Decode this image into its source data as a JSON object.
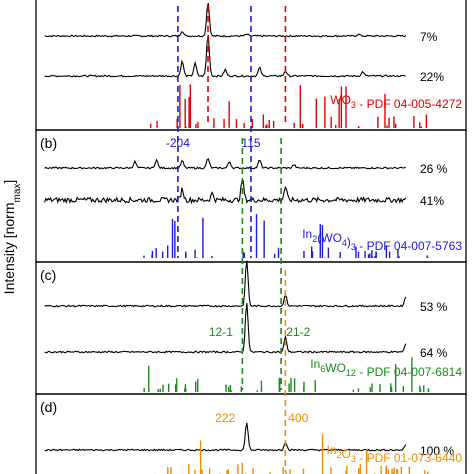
{
  "chart_data": {
    "type": "line",
    "ylabel": "Intensity [norm",
    "ylabel_sub": "max",
    "ylabel_close": "]",
    "colors": {
      "pattern": "#000000",
      "WO3": "#e00000",
      "In2(WO4)3": "#1a1adb",
      "In6WO12": "#1a8a1a",
      "In2O3": "#f08c00"
    },
    "panels": [
      {
        "letter": "",
        "traces": [
          {
            "label": "7%",
            "peaks": [
              {
                "x": 0.4,
                "h": 1.0
              },
              {
                "x": 0.34,
                "h": 0.15
              },
              {
                "x": 0.49,
                "h": 0.05
              },
              {
                "x": 0.75,
                "h": 0.05
              }
            ]
          },
          {
            "label": "22%",
            "peaks": [
              {
                "x": 0.4,
                "h": 1.0
              },
              {
                "x": 0.34,
                "h": 0.35
              },
              {
                "x": 0.37,
                "h": 0.3
              },
              {
                "x": 0.52,
                "h": 0.2
              },
              {
                "x": 0.44,
                "h": 0.15
              },
              {
                "x": 0.58,
                "h": 0.12
              },
              {
                "x": 0.76,
                "h": 0.1
              }
            ]
          }
        ],
        "reference": {
          "name": "WO",
          "sub": "3",
          "rest": " - PDF 04-005-4272",
          "color_key": "WO3"
        },
        "marker_labels": []
      },
      {
        "letter": "(b)",
        "traces": [
          {
            "label": "26 %",
            "peaks": [
              {
                "x": 0.23,
                "h": 0.4
              },
              {
                "x": 0.28,
                "h": 0.5
              },
              {
                "x": 0.34,
                "h": 0.45
              },
              {
                "x": 0.4,
                "h": 0.6
              },
              {
                "x": 0.45,
                "h": 0.4
              },
              {
                "x": 0.52,
                "h": 0.5
              },
              {
                "x": 0.6,
                "h": 0.2
              }
            ]
          },
          {
            "label": "41%",
            "peaks": [
              {
                "x": 0.34,
                "h": 0.5
              },
              {
                "x": 0.48,
                "h": 0.95
              },
              {
                "x": 0.58,
                "h": 0.6
              },
              {
                "x": 0.41,
                "h": 0.3
              }
            ]
          }
        ],
        "reference": {
          "name": "In",
          "sub": "2",
          "mid": "(WO",
          "sub2": "4",
          "mid2": ")",
          "sub3": "3",
          "rest": " - PDF 04-007-5763",
          "color_key": "In2(WO4)3"
        },
        "marker_labels": [
          {
            "text": "-204",
            "x": 0.33,
            "color_key": "In2(WO4)3"
          },
          {
            "text": "115",
            "x": 0.5,
            "color_key": "In2(WO4)3"
          }
        ]
      },
      {
        "letter": "(c)",
        "traces": [
          {
            "label": "53 %",
            "peaks": [
              {
                "x": 0.49,
                "h": 1.0
              },
              {
                "x": 0.58,
                "h": 0.25
              },
              {
                "x": 0.86,
                "h": 0.2
              }
            ]
          },
          {
            "label": "64 %",
            "peaks": [
              {
                "x": 0.49,
                "h": 1.0
              },
              {
                "x": 0.58,
                "h": 0.3
              },
              {
                "x": 0.86,
                "h": 0.15
              }
            ]
          }
        ],
        "reference": {
          "name": "In",
          "sub": "6",
          "mid": "WO",
          "sub2": "12",
          "rest": " - PDF 04-007-6814",
          "color_key": "In6WO12"
        },
        "marker_labels": [
          {
            "text": "12-1",
            "x": 0.43,
            "color_key": "In6WO12"
          },
          {
            "text": "21-2",
            "x": 0.61,
            "color_key": "In6WO12"
          }
        ]
      },
      {
        "letter": "(d)",
        "traces": [
          {
            "label": "100 %",
            "peaks": [
              {
                "x": 0.49,
                "h": 1.0
              },
              {
                "x": 0.58,
                "h": 0.3
              },
              {
                "x": 0.86,
                "h": 0.2
              }
            ]
          }
        ],
        "reference": {
          "name": "In",
          "sub": "2",
          "mid": "O",
          "sub2": "3",
          "rest": " - PDF 01-073-6440",
          "color_key": "In2O3"
        },
        "marker_labels": [
          {
            "text": "222",
            "x": 0.44,
            "color_key": "In2O3"
          },
          {
            "text": "400",
            "x": 0.61,
            "color_key": "In2O3"
          }
        ]
      }
    ],
    "dashed_markers": [
      {
        "x": 0.4,
        "color_key": "WO3",
        "panels": [
          0
        ]
      },
      {
        "x": 0.58,
        "color_key": "WO3",
        "panels": [
          0
        ]
      },
      {
        "x": 0.33,
        "color_key": "In2(WO4)3",
        "panels": [
          0,
          1
        ]
      },
      {
        "x": 0.5,
        "color_key": "In2(WO4)3",
        "panels": [
          0,
          1
        ]
      },
      {
        "x": 0.48,
        "color_key": "In6WO12",
        "panels": [
          1,
          2
        ]
      },
      {
        "x": 0.57,
        "color_key": "In6WO12",
        "panels": [
          1,
          2
        ]
      },
      {
        "x": 0.58,
        "color_key": "In2O3",
        "panels": [
          2,
          3
        ]
      }
    ],
    "grid": false,
    "legend": "none"
  }
}
